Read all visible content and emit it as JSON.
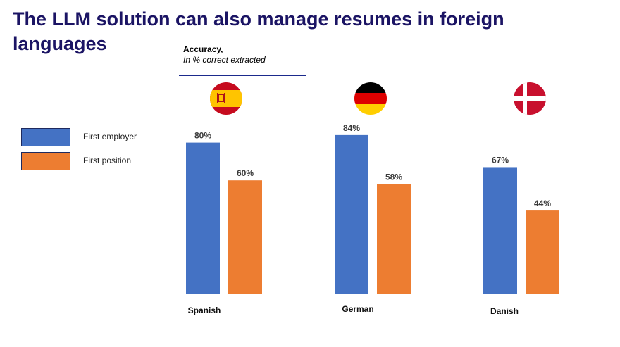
{
  "title": "The LLM solution can also manage resumes in foreign languages",
  "chart_data": {
    "type": "bar",
    "title": "Accuracy,",
    "subtitle": "In % correct extracted",
    "categories": [
      "Spanish",
      "German",
      "Danish"
    ],
    "series": [
      {
        "name": "First employer",
        "values": [
          80,
          84,
          67
        ],
        "labels": [
          "80%",
          "84%",
          "67%"
        ],
        "color": "#4472c4"
      },
      {
        "name": "First position",
        "values": [
          60,
          58,
          44
        ],
        "labels": [
          "60%",
          "58%",
          "44%"
        ],
        "color": "#ed7d31"
      }
    ],
    "ylim": [
      0,
      100
    ],
    "legend": "left",
    "grid": false,
    "flags": [
      "spain-flag-icon",
      "germany-flag-icon",
      "denmark-flag-icon"
    ]
  }
}
